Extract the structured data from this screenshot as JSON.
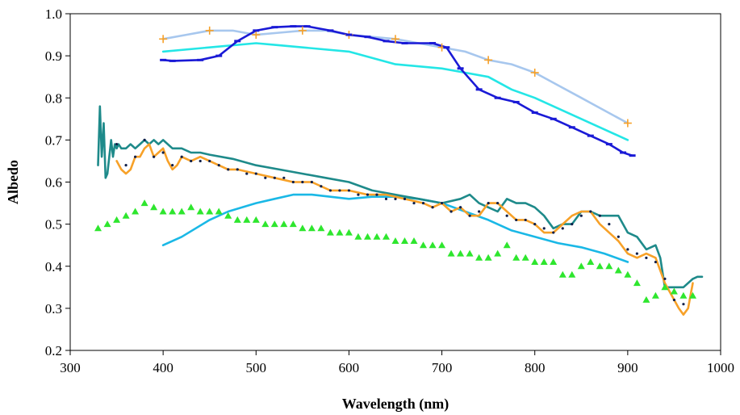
{
  "chart_data": {
    "type": "line",
    "xlabel": "Wavelength (nm)",
    "ylabel": "Albedo",
    "xlim": [
      300,
      1000
    ],
    "ylim": [
      0.2,
      1.0
    ],
    "xticks": [
      300,
      400,
      500,
      600,
      700,
      800,
      900,
      1000
    ],
    "yticks": [
      0.2,
      0.3,
      0.4,
      0.5,
      0.6,
      0.7,
      0.8,
      0.9,
      1.0
    ],
    "xtick_labels": [
      "300",
      "400",
      "500",
      "600",
      "700",
      "800",
      "900",
      "1000"
    ],
    "ytick_labels": [
      "0.2",
      "0.3",
      "0.4",
      "0.5",
      "0.6",
      "0.7",
      "0.8",
      "0.9",
      "1.0"
    ],
    "grid": false,
    "legend": "none",
    "series": [
      {
        "color": "#a7c7ee",
        "marker": "plus",
        "marker_color": "#f7a128",
        "x": [
          400,
          425,
          450,
          475,
          500,
          525,
          550,
          575,
          600,
          625,
          650,
          675,
          700,
          725,
          750,
          775,
          800,
          825,
          850,
          875,
          900
        ],
        "y": [
          0.94,
          0.95,
          0.96,
          0.96,
          0.95,
          0.955,
          0.96,
          0.96,
          0.95,
          0.945,
          0.94,
          0.93,
          0.92,
          0.91,
          0.89,
          0.88,
          0.86,
          0.83,
          0.8,
          0.77,
          0.74
        ],
        "markers_x": [
          400,
          450,
          500,
          550,
          600,
          650,
          700,
          750,
          800,
          900
        ],
        "markers_y": [
          0.94,
          0.96,
          0.95,
          0.96,
          0.95,
          0.94,
          0.92,
          0.89,
          0.86,
          0.74
        ]
      },
      {
        "color": "#24e6e6",
        "marker": "none",
        "x": [
          400,
          450,
          500,
          525,
          550,
          600,
          625,
          650,
          700,
          725,
          750,
          775,
          800,
          850,
          900
        ],
        "y": [
          0.91,
          0.92,
          0.93,
          0.925,
          0.92,
          0.91,
          0.895,
          0.88,
          0.87,
          0.86,
          0.85,
          0.82,
          0.8,
          0.75,
          0.7
        ]
      },
      {
        "color": "#1a1ad6",
        "marker": "dash",
        "x": [
          400,
          410,
          440,
          460,
          480,
          500,
          520,
          540,
          555,
          580,
          600,
          620,
          640,
          660,
          690,
          705,
          720,
          740,
          760,
          780,
          800,
          820,
          840,
          860,
          880,
          895,
          905
        ],
        "y": [
          0.89,
          0.888,
          0.89,
          0.9,
          0.935,
          0.96,
          0.968,
          0.97,
          0.97,
          0.96,
          0.95,
          0.945,
          0.935,
          0.93,
          0.93,
          0.92,
          0.87,
          0.82,
          0.8,
          0.79,
          0.765,
          0.75,
          0.73,
          0.71,
          0.69,
          0.67,
          0.663
        ]
      },
      {
        "color": "#1ab8e6",
        "marker": "none",
        "x": [
          400,
          420,
          450,
          470,
          500,
          520,
          540,
          560,
          580,
          600,
          625,
          650,
          675,
          700,
          725,
          750,
          775,
          800,
          825,
          850,
          875,
          900
        ],
        "y": [
          0.45,
          0.47,
          0.51,
          0.53,
          0.55,
          0.56,
          0.57,
          0.57,
          0.565,
          0.56,
          0.565,
          0.565,
          0.56,
          0.55,
          0.53,
          0.51,
          0.485,
          0.47,
          0.455,
          0.445,
          0.43,
          0.41
        ]
      },
      {
        "color": "#1e8a8a",
        "marker": "none",
        "x": [
          330,
          332,
          334,
          336,
          338,
          340,
          342,
          344,
          346,
          348,
          350,
          352,
          355,
          360,
          365,
          370,
          375,
          380,
          385,
          390,
          395,
          400,
          410,
          420,
          430,
          440,
          450,
          475,
          500,
          525,
          550,
          575,
          600,
          625,
          650,
          675,
          700,
          720,
          730,
          740,
          750,
          760,
          770,
          780,
          790,
          800,
          810,
          820,
          830,
          840,
          850,
          860,
          870,
          880,
          890,
          900,
          910,
          920,
          930,
          935,
          940,
          950,
          960,
          970,
          975,
          980
        ],
        "y": [
          0.64,
          0.78,
          0.66,
          0.74,
          0.61,
          0.62,
          0.66,
          0.7,
          0.66,
          0.69,
          0.68,
          0.69,
          0.68,
          0.68,
          0.69,
          0.68,
          0.69,
          0.7,
          0.69,
          0.7,
          0.69,
          0.7,
          0.68,
          0.68,
          0.67,
          0.67,
          0.665,
          0.655,
          0.64,
          0.63,
          0.62,
          0.61,
          0.6,
          0.58,
          0.57,
          0.56,
          0.55,
          0.56,
          0.57,
          0.55,
          0.54,
          0.53,
          0.56,
          0.55,
          0.55,
          0.54,
          0.52,
          0.49,
          0.5,
          0.5,
          0.53,
          0.53,
          0.52,
          0.52,
          0.52,
          0.48,
          0.47,
          0.44,
          0.45,
          0.42,
          0.35,
          0.35,
          0.35,
          0.37,
          0.375,
          0.375
        ]
      },
      {
        "color": "#f7a128",
        "marker": "dot",
        "marker_color": "#0f1f4a",
        "x": [
          350,
          355,
          360,
          365,
          370,
          375,
          380,
          385,
          390,
          395,
          400,
          405,
          410,
          415,
          420,
          430,
          440,
          450,
          460,
          470,
          480,
          500,
          520,
          540,
          560,
          580,
          600,
          620,
          640,
          660,
          680,
          690,
          700,
          710,
          720,
          730,
          740,
          750,
          760,
          770,
          780,
          790,
          800,
          810,
          820,
          830,
          840,
          850,
          860,
          870,
          880,
          890,
          900,
          910,
          920,
          930,
          940,
          950,
          955,
          960,
          965,
          970
        ],
        "y": [
          0.65,
          0.63,
          0.62,
          0.63,
          0.66,
          0.66,
          0.68,
          0.69,
          0.66,
          0.67,
          0.68,
          0.65,
          0.63,
          0.64,
          0.66,
          0.65,
          0.66,
          0.65,
          0.64,
          0.63,
          0.63,
          0.62,
          0.61,
          0.6,
          0.6,
          0.58,
          0.58,
          0.57,
          0.57,
          0.56,
          0.55,
          0.54,
          0.55,
          0.53,
          0.54,
          0.52,
          0.52,
          0.55,
          0.55,
          0.53,
          0.51,
          0.51,
          0.5,
          0.48,
          0.48,
          0.5,
          0.52,
          0.53,
          0.53,
          0.5,
          0.48,
          0.46,
          0.43,
          0.42,
          0.43,
          0.42,
          0.36,
          0.32,
          0.3,
          0.285,
          0.3,
          0.36
        ],
        "markers_x": [
          350,
          360,
          370,
          380,
          390,
          400,
          410,
          420,
          430,
          440,
          450,
          460,
          470,
          480,
          490,
          500,
          510,
          520,
          530,
          540,
          550,
          560,
          570,
          580,
          590,
          600,
          610,
          620,
          630,
          640,
          650,
          660,
          670,
          680,
          690,
          700,
          710,
          720,
          730,
          740,
          750,
          760,
          770,
          780,
          790,
          800,
          810,
          820,
          830,
          840,
          850,
          860,
          870,
          880,
          890,
          900,
          910,
          920,
          930,
          940,
          950,
          960
        ],
        "markers_y": [
          0.69,
          0.64,
          0.66,
          0.7,
          0.66,
          0.67,
          0.64,
          0.66,
          0.65,
          0.65,
          0.65,
          0.64,
          0.63,
          0.63,
          0.62,
          0.62,
          0.61,
          0.61,
          0.61,
          0.6,
          0.6,
          0.6,
          0.59,
          0.58,
          0.58,
          0.58,
          0.57,
          0.57,
          0.57,
          0.56,
          0.56,
          0.56,
          0.55,
          0.55,
          0.54,
          0.55,
          0.53,
          0.54,
          0.52,
          0.53,
          0.55,
          0.55,
          0.52,
          0.51,
          0.51,
          0.5,
          0.49,
          0.48,
          0.49,
          0.5,
          0.52,
          0.53,
          0.52,
          0.5,
          0.47,
          0.44,
          0.43,
          0.42,
          0.41,
          0.37,
          0.32,
          0.31
        ]
      },
      {
        "color": "#2ee62e",
        "marker": "triangle",
        "line": false,
        "x": [
          330,
          340,
          350,
          360,
          370,
          380,
          390,
          400,
          410,
          420,
          430,
          440,
          450,
          460,
          470,
          480,
          490,
          500,
          510,
          520,
          530,
          540,
          550,
          560,
          570,
          580,
          590,
          600,
          610,
          620,
          630,
          640,
          650,
          660,
          670,
          680,
          690,
          700,
          710,
          720,
          730,
          740,
          750,
          760,
          770,
          780,
          790,
          800,
          810,
          820,
          830,
          840,
          850,
          860,
          870,
          880,
          890,
          900,
          910,
          920,
          930,
          940,
          950,
          960,
          970
        ],
        "y": [
          0.49,
          0.5,
          0.51,
          0.52,
          0.53,
          0.55,
          0.54,
          0.53,
          0.53,
          0.53,
          0.54,
          0.53,
          0.53,
          0.53,
          0.52,
          0.51,
          0.51,
          0.51,
          0.5,
          0.5,
          0.5,
          0.5,
          0.49,
          0.49,
          0.49,
          0.48,
          0.48,
          0.48,
          0.47,
          0.47,
          0.47,
          0.47,
          0.46,
          0.46,
          0.46,
          0.45,
          0.45,
          0.45,
          0.43,
          0.43,
          0.43,
          0.42,
          0.42,
          0.43,
          0.45,
          0.42,
          0.42,
          0.41,
          0.41,
          0.41,
          0.38,
          0.38,
          0.4,
          0.41,
          0.4,
          0.4,
          0.39,
          0.38,
          0.36,
          0.32,
          0.33,
          0.35,
          0.34,
          0.33,
          0.33
        ]
      }
    ]
  }
}
